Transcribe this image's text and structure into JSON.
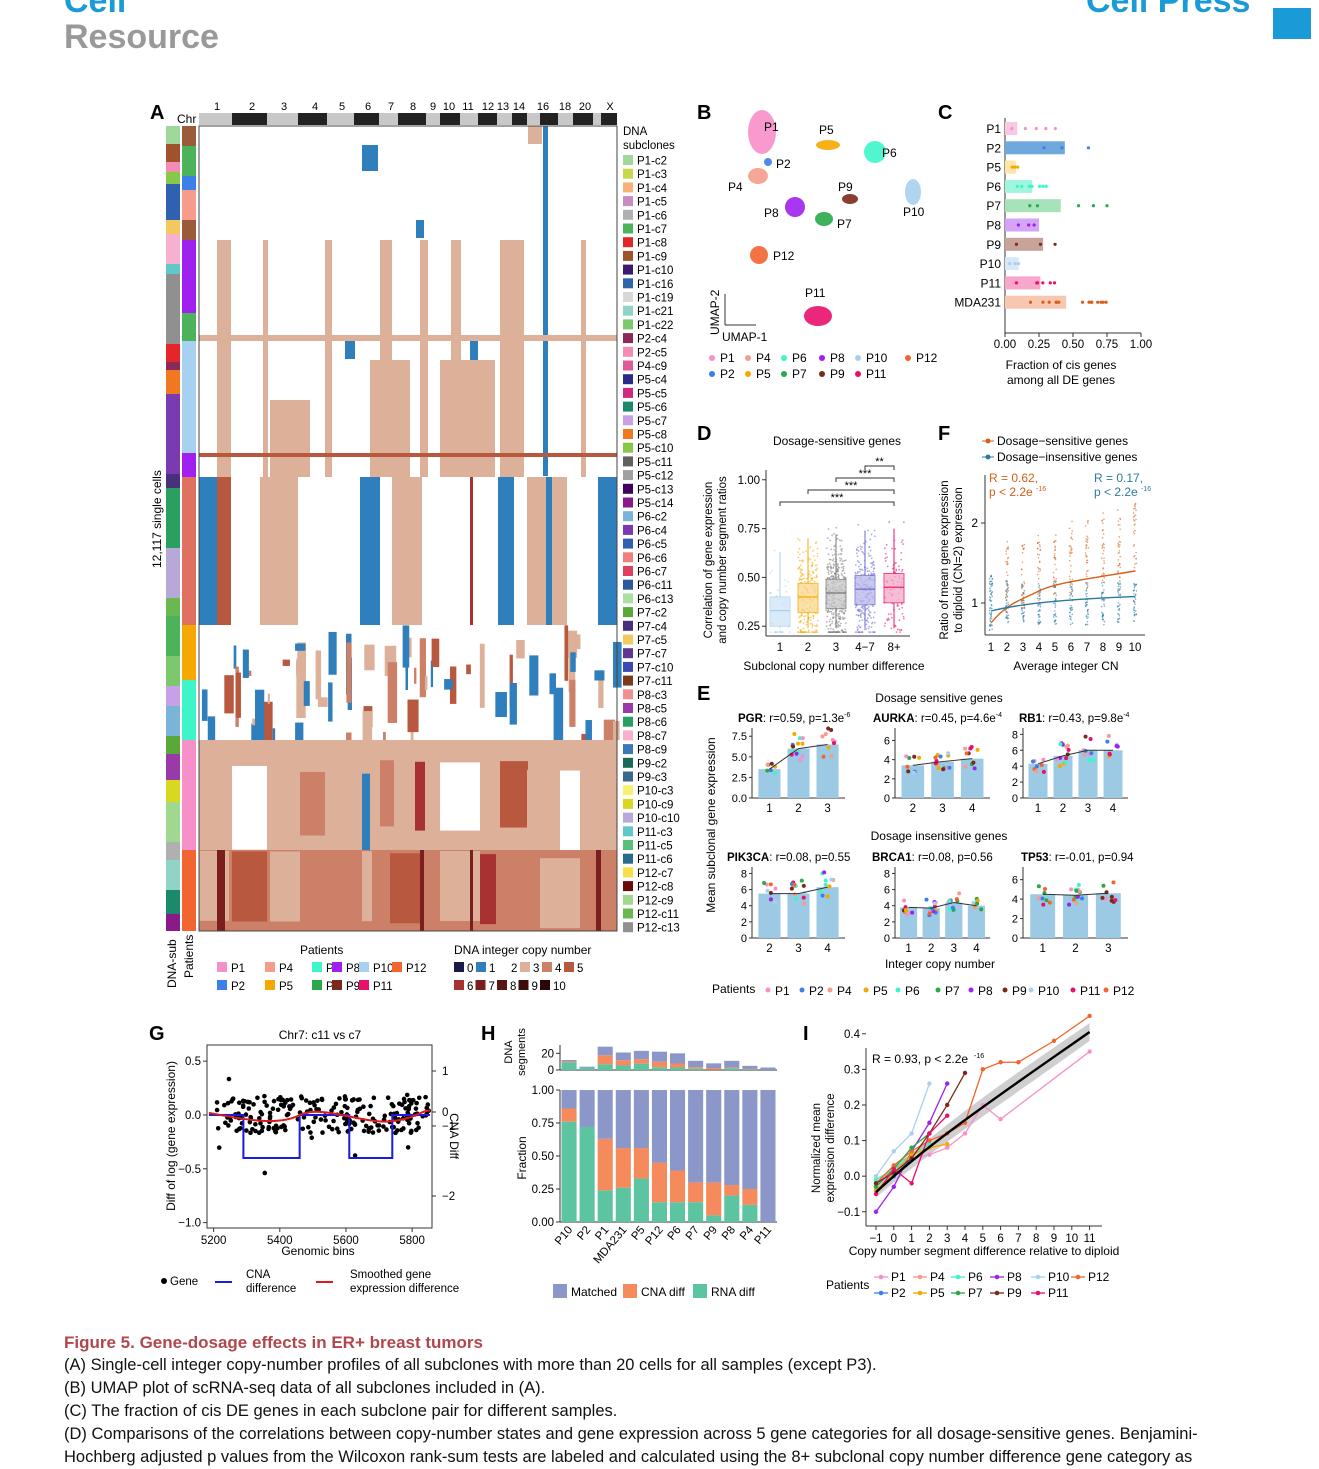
{
  "header": {
    "journal": "Cell",
    "section": "Resource",
    "press": "Cell Press"
  },
  "panelA": {
    "label": "A",
    "chr_label": "Chr",
    "chromosomes": [
      "1",
      "2",
      "3",
      "4",
      "5",
      "6",
      "7",
      "8",
      "9",
      "10",
      "11",
      "12",
      "13",
      "14",
      "16",
      "18",
      "20",
      "X"
    ],
    "ylabel": "12,117 single cells",
    "bottom_labels": [
      "DNA-sub",
      "Patients"
    ],
    "legend_title": "DNA subclones",
    "subclones": [
      "P1-c2",
      "P1-c3",
      "P1-c4",
      "P1-c5",
      "P1-c6",
      "P1-c7",
      "P1-c8",
      "P1-c9",
      "P1-c10",
      "P1-c16",
      "P1-c19",
      "P1-c21",
      "P1-c22",
      "P2-c4",
      "P2-c5",
      "P4-c9",
      "P5-c4",
      "P5-c5",
      "P5-c6",
      "P5-c7",
      "P5-c8",
      "P5-c10",
      "P5-c11",
      "P5-c12",
      "P5-c13",
      "P5-c14",
      "P6-c2",
      "P6-c4",
      "P6-c5",
      "P6-c6",
      "P6-c7",
      "P6-c11",
      "P6-c13",
      "P7-c2",
      "P7-c4",
      "P7-c5",
      "P7-c7",
      "P7-c10",
      "P7-c11",
      "P8-c3",
      "P8-c5",
      "P8-c6",
      "P8-c7",
      "P8-c9",
      "P9-c2",
      "P9-c3",
      "P10-c3",
      "P10-c9",
      "P10-c10",
      "P11-c3",
      "P11-c5",
      "P11-c6",
      "P12-c7",
      "P12-c8",
      "P12-c9",
      "P12-c11",
      "P12-c13"
    ],
    "subclone_colors": [
      "#9fd89a",
      "#c8d84a",
      "#f4b27a",
      "#c98bc4",
      "#b0b0b0",
      "#4db35a",
      "#e4262b",
      "#a0522d",
      "#3c1a6e",
      "#2e67a8",
      "#d8d8d8",
      "#90d4c8",
      "#7cc86c",
      "#8a2a5a",
      "#f28cb4",
      "#e05898",
      "#2a2a8a",
      "#d02880",
      "#1a8a6a",
      "#c8a0e8",
      "#f07820",
      "#88c848",
      "#606060",
      "#a0a0a0",
      "#400060",
      "#8a1a8a",
      "#7ab4d8",
      "#7a3ab0",
      "#3060b0",
      "#f08080",
      "#e04060",
      "#2a5a9a",
      "#a8e0a0",
      "#5aa83a",
      "#48307a",
      "#f4c860",
      "#603890",
      "#3a4ab0",
      "#7a3a1a",
      "#f09090",
      "#9a3aa8",
      "#2aa060",
      "#f8b0d0",
      "#3a78b8",
      "#1a6a5a",
      "#3a6a8a",
      "#f8f070",
      "#d8d820",
      "#b8a8d8",
      "#60c8c8",
      "#58c078",
      "#2a6a8a",
      "#f8e048",
      "#6a0a0a",
      "#a0d890",
      "#6ab850",
      "#909090"
    ],
    "patients_title": "Patients",
    "patients": [
      "P1",
      "P4",
      "P6",
      "P8",
      "P10",
      "P12",
      "P2",
      "P5",
      "P7",
      "P9",
      "P11"
    ],
    "patient_colors": [
      "#f78fc9",
      "#f59c8c",
      "#3df5c8",
      "#a020f0",
      "#a8d0f0",
      "#f26430",
      "#3a80e8",
      "#f5a800",
      "#2aa84a",
      "#7a2a1a",
      "#e8106c"
    ],
    "cn_title": "DNA integer copy number",
    "cn_levels": [
      "0",
      "1",
      "2",
      "3",
      "4",
      "5",
      "6",
      "7",
      "8",
      "9",
      "10"
    ],
    "cn_colors": [
      "#1a1a4a",
      "#2f7fbd",
      "#ffffff",
      "#ddb09a",
      "#cc8068",
      "#b8583e",
      "#a83232",
      "#7a1e1e",
      "#5a1414",
      "#3e0c0c",
      "#2a0606"
    ]
  },
  "panelB": {
    "label": "B",
    "clusters": [
      "P1",
      "P2",
      "P4",
      "P5",
      "P6",
      "P7",
      "P8",
      "P9",
      "P10",
      "P11",
      "P12"
    ],
    "x_label": "UMAP-1",
    "y_label": "UMAP-2",
    "legend": [
      "P1",
      "P4",
      "P6",
      "P8",
      "P10",
      "P12",
      "P2",
      "P5",
      "P7",
      "P9",
      "P11"
    ]
  },
  "panelC": {
    "label": "C",
    "xlabel": "Fraction of cis genes\namong all DE genes",
    "chart_data": {
      "type": "bar",
      "categories": [
        "P1",
        "P2",
        "P5",
        "P6",
        "P7",
        "P8",
        "P9",
        "P10",
        "P11",
        "MDA231"
      ],
      "values": [
        0.09,
        0.44,
        0.08,
        0.2,
        0.41,
        0.25,
        0.28,
        0.1,
        0.26,
        0.45
      ],
      "xlim": [
        0,
        1
      ],
      "xticks": [
        "0.00",
        "0.25",
        "0.50",
        "0.75",
        "1.00"
      ]
    }
  },
  "panelD": {
    "label": "D",
    "title": "Dosage-sensitive genes",
    "ylabel": "Correlation of gene expression\nand copy number segment ratios",
    "xlabel": "Subclonal copy number difference",
    "chart_data": {
      "type": "box",
      "categories": [
        "1",
        "2",
        "3",
        "4−7",
        "8+"
      ],
      "medians": [
        0.33,
        0.4,
        0.42,
        0.44,
        0.45
      ],
      "ylim": [
        0.2,
        1.05
      ],
      "yticks": [
        "0.25",
        "0.50",
        "0.75",
        "1.00"
      ],
      "significance": [
        "**",
        "***",
        "***",
        "***"
      ]
    }
  },
  "panelF": {
    "label": "F",
    "legend": [
      "Dosage−sensitive genes",
      "Dosage−insensitive genes"
    ],
    "stat1": "R = 0.62,",
    "stat1b": "p < 2.2e",
    "stat2": "R = 0.17,",
    "stat2b": "p < 2.2e",
    "exp": "-16",
    "ylabel": "Ratio of mean gene expression\nto diploid (CN=2) expression",
    "xlabel": "Average integer CN",
    "chart_data": {
      "type": "scatter",
      "x": [
        "1",
        "2",
        "3",
        "4",
        "5",
        "6",
        "7",
        "8",
        "9",
        "10"
      ],
      "yticks": [
        "1",
        "2"
      ]
    }
  },
  "panelE": {
    "label": "E",
    "title_sens": "Dosage sensitive genes",
    "title_insens": "Dosage insensitive genes",
    "ylabel": "Mean subclonal gene expression",
    "xlabel": "Integer copy number",
    "genes": [
      {
        "name": "PGR",
        "stat": ": r=0.59, p=1.3e",
        "exp": "-6",
        "x": [
          "1",
          "2",
          "3"
        ],
        "values": [
          3.5,
          6.0,
          6.5
        ],
        "yticks": [
          "0.0",
          "2.5",
          "5.0",
          "7.5"
        ]
      },
      {
        "name": "AURKA",
        "stat": ": r=0.45, p=4.6e",
        "exp": "-4",
        "x": [
          "2",
          "3",
          "4"
        ],
        "values": [
          3.4,
          3.8,
          4.1
        ],
        "yticks": [
          "0",
          "2",
          "4",
          "6"
        ]
      },
      {
        "name": "RB1",
        "stat": ": r=0.43, p=9.8e",
        "exp": "-4",
        "x": [
          "1",
          "2",
          "3",
          "4"
        ],
        "values": [
          4.3,
          5.3,
          6.0,
          6.0
        ],
        "yticks": [
          "0",
          "2",
          "4",
          "6",
          "8"
        ]
      },
      {
        "name": "PIK3CA",
        "stat": ": r=0.08, p=0.55",
        "exp": "",
        "x": [
          "2",
          "3",
          "4"
        ],
        "values": [
          5.5,
          5.5,
          6.3
        ],
        "yticks": [
          "0",
          "2",
          "4",
          "6",
          "8"
        ]
      },
      {
        "name": "BRCA1",
        "stat": ": r=0.08, p=0.56",
        "exp": "",
        "x": [
          "1",
          "2",
          "3",
          "4"
        ],
        "values": [
          3.8,
          3.7,
          4.4,
          4.0
        ],
        "yticks": [
          "0",
          "2",
          "4",
          "6",
          "8"
        ]
      },
      {
        "name": "TP53",
        "stat": ": r=-0.01, p=0.94",
        "exp": "",
        "x": [
          "1",
          "2",
          "3"
        ],
        "values": [
          4.5,
          4.4,
          4.6
        ],
        "yticks": [
          "0",
          "2",
          "4",
          "6"
        ]
      }
    ],
    "patients_label": "Patients",
    "patients": [
      "P1",
      "P2",
      "P4",
      "P5",
      "P6",
      "P7",
      "P8",
      "P9",
      "P10",
      "P11",
      "P12"
    ]
  },
  "panelG": {
    "label": "G",
    "title": "Chr7: c11 vs c7",
    "ylabel": "Diff of log (gene expression)",
    "y2label": "CNA Diff",
    "xlabel": "Genomic bins",
    "chart_data": {
      "type": "scatter",
      "xticks": [
        "5200",
        "5400",
        "5600",
        "5800"
      ],
      "yticks": [
        "−1.0",
        "−0.5",
        "0.0",
        "0.5"
      ],
      "y2ticks": [
        "−2",
        "−1",
        "0",
        "1"
      ]
    },
    "legend": [
      "Gene",
      "CNA\ndifference",
      "Smoothed  gene\nexpression difference"
    ]
  },
  "panelH": {
    "label": "H",
    "top_ylabel": "DNA\nsegments",
    "ylabel": "Fraction",
    "chart_data": {
      "type": "bar",
      "categories": [
        "P10",
        "P2",
        "P1",
        "MDA231",
        "P5",
        "P12",
        "P6",
        "P7",
        "P9",
        "P8",
        "P4",
        "P11"
      ],
      "series": [
        {
          "name": "Matched",
          "values": [
            0.14,
            0.28,
            0.37,
            0.44,
            0.44,
            0.55,
            0.61,
            0.7,
            0.7,
            0.72,
            0.75,
            1.0
          ]
        },
        {
          "name": "CNA diff",
          "values": [
            0.1,
            0.0,
            0.39,
            0.3,
            0.23,
            0.3,
            0.24,
            0.15,
            0.25,
            0.08,
            0.12,
            0.0
          ]
        },
        {
          "name": "RNA diff",
          "values": [
            0.76,
            0.72,
            0.24,
            0.26,
            0.33,
            0.15,
            0.15,
            0.15,
            0.05,
            0.2,
            0.13,
            0.0
          ]
        }
      ],
      "segments": [
        12,
        4,
        28,
        21,
        23,
        22,
        20,
        11,
        8,
        11,
        5,
        3
      ],
      "yticks": [
        "0.00",
        "0.25",
        "0.50",
        "0.75",
        "1.00"
      ],
      "top_yticks": [
        "0",
        "20"
      ]
    }
  },
  "panelI": {
    "label": "I",
    "stat": "R = 0.93, p < 2.2e",
    "exp": "-16",
    "ylabel": "Normalized mean\nexpression difference",
    "xlabel": "Copy number segment difference relative to diploid",
    "chart_data": {
      "type": "line",
      "x": [
        "−1",
        "0",
        "1",
        "2",
        "3",
        "4",
        "5",
        "6",
        "7",
        "8",
        "9",
        "10",
        "11"
      ],
      "yticks": [
        "−0.1",
        "0.0",
        "0.1",
        "0.2",
        "0.3",
        "0.4"
      ]
    },
    "patients_label": "Patients",
    "patients": [
      "P1",
      "P4",
      "P6",
      "P8",
      "P10",
      "P12",
      "P2",
      "P5",
      "P7",
      "P9",
      "P11"
    ]
  },
  "caption": {
    "title": "Figure 5.  Gene-dosage effects in ER+ breast tumors",
    "lines": [
      "(A) Single-cell integer copy-number profiles of all subclones with more than 20 cells for all samples (except P3).",
      "(B) UMAP plot of scRNA-seq data of all subclones included in (A).",
      "(C) The fraction of cis DE genes in each subclone pair for different samples.",
      "(D) Comparisons of the correlations between copy-number states and gene expression across 5 gene categories for all dosage-sensitive genes. Benjamini-",
      "Hochberg adjusted p values from the Wilcoxon rank-sum tests are labeled and calculated using the 8+ subclonal copy number difference gene category as"
    ]
  }
}
